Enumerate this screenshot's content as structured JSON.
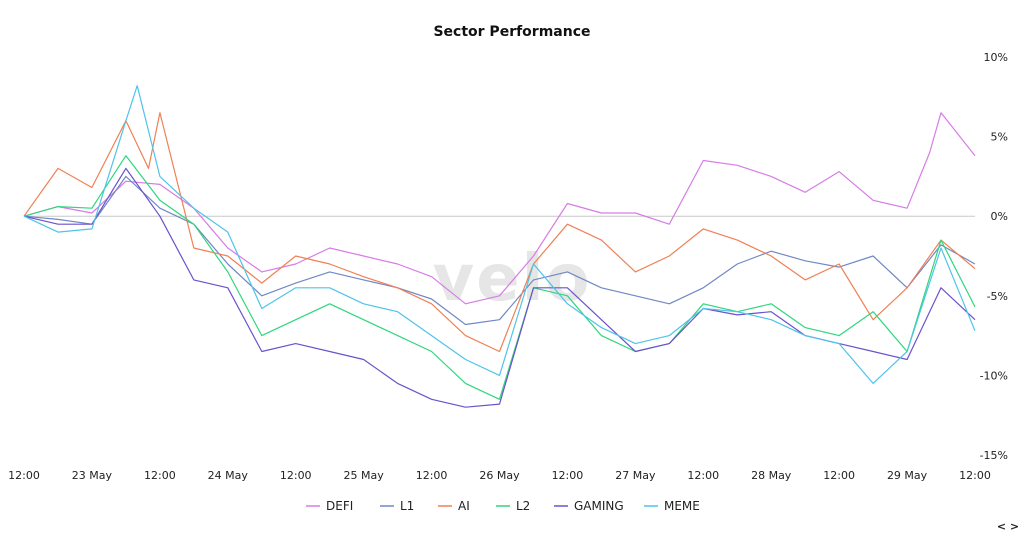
{
  "watermark": "velo",
  "zoom_control": "< >",
  "chart_data": {
    "type": "line",
    "title": "Sector Performance",
    "xlabel": "",
    "ylabel": "",
    "x_start": "2024-05-22 12:00",
    "x_end": "2024-05-29 12:00",
    "x_ticks": [
      {
        "x": "2024-05-22 12:00",
        "label": "12:00"
      },
      {
        "x": "2024-05-23 00:00",
        "label": "23 May"
      },
      {
        "x": "2024-05-23 12:00",
        "label": "12:00"
      },
      {
        "x": "2024-05-24 00:00",
        "label": "24 May"
      },
      {
        "x": "2024-05-24 12:00",
        "label": "12:00"
      },
      {
        "x": "2024-05-25 00:00",
        "label": "25 May"
      },
      {
        "x": "2024-05-25 12:00",
        "label": "12:00"
      },
      {
        "x": "2024-05-26 00:00",
        "label": "26 May"
      },
      {
        "x": "2024-05-26 12:00",
        "label": "12:00"
      },
      {
        "x": "2024-05-27 00:00",
        "label": "27 May"
      },
      {
        "x": "2024-05-27 12:00",
        "label": "12:00"
      },
      {
        "x": "2024-05-28 00:00",
        "label": "28 May"
      },
      {
        "x": "2024-05-28 12:00",
        "label": "12:00"
      },
      {
        "x": "2024-05-29 00:00",
        "label": "29 May"
      },
      {
        "x": "2024-05-29 12:00",
        "label": "12:00"
      }
    ],
    "y_ticks": [
      {
        "value": 10,
        "label": "10%"
      },
      {
        "value": 5,
        "label": "5%"
      },
      {
        "value": 0,
        "label": "0%"
      },
      {
        "value": -5,
        "label": "-5%"
      },
      {
        "value": -10,
        "label": "-10%"
      },
      {
        "value": -15,
        "label": "-15%"
      }
    ],
    "ylim": [
      -15,
      10
    ],
    "y_axis_position": "right",
    "zero_line": true,
    "grid": false,
    "legend_position": "bottom-center",
    "series": [
      {
        "name": "DEFI",
        "color": "#d77ce6",
        "points": [
          [
            "2024-05-22 12:00",
            0
          ],
          [
            "2024-05-22 18:00",
            0.6
          ],
          [
            "2024-05-23 00:00",
            0.2
          ],
          [
            "2024-05-23 06:00",
            2.2
          ],
          [
            "2024-05-23 12:00",
            2.0
          ],
          [
            "2024-05-23 18:00",
            0.5
          ],
          [
            "2024-05-24 00:00",
            -2.0
          ],
          [
            "2024-05-24 06:00",
            -3.5
          ],
          [
            "2024-05-24 12:00",
            -3.0
          ],
          [
            "2024-05-24 18:00",
            -2.0
          ],
          [
            "2024-05-25 00:00",
            -2.5
          ],
          [
            "2024-05-25 06:00",
            -3.0
          ],
          [
            "2024-05-25 12:00",
            -3.8
          ],
          [
            "2024-05-25 18:00",
            -5.5
          ],
          [
            "2024-05-26 00:00",
            -5.0
          ],
          [
            "2024-05-26 06:00",
            -2.5
          ],
          [
            "2024-05-26 12:00",
            0.8
          ],
          [
            "2024-05-26 18:00",
            0.2
          ],
          [
            "2024-05-27 00:00",
            0.2
          ],
          [
            "2024-05-27 06:00",
            -0.5
          ],
          [
            "2024-05-27 12:00",
            3.5
          ],
          [
            "2024-05-27 18:00",
            3.2
          ],
          [
            "2024-05-28 00:00",
            2.5
          ],
          [
            "2024-05-28 06:00",
            1.5
          ],
          [
            "2024-05-28 12:00",
            2.8
          ],
          [
            "2024-05-28 18:00",
            1.0
          ],
          [
            "2024-05-29 00:00",
            0.5
          ],
          [
            "2024-05-29 04:00",
            4.0
          ],
          [
            "2024-05-29 06:00",
            6.5
          ],
          [
            "2024-05-29 12:00",
            3.8
          ]
        ]
      },
      {
        "name": "L1",
        "color": "#7088c4",
        "points": [
          [
            "2024-05-22 12:00",
            0
          ],
          [
            "2024-05-22 18:00",
            -0.2
          ],
          [
            "2024-05-23 00:00",
            -0.5
          ],
          [
            "2024-05-23 06:00",
            2.5
          ],
          [
            "2024-05-23 12:00",
            0.5
          ],
          [
            "2024-05-23 18:00",
            -0.5
          ],
          [
            "2024-05-24 00:00",
            -3.0
          ],
          [
            "2024-05-24 06:00",
            -5.0
          ],
          [
            "2024-05-24 12:00",
            -4.2
          ],
          [
            "2024-05-24 18:00",
            -3.5
          ],
          [
            "2024-05-25 00:00",
            -4.0
          ],
          [
            "2024-05-25 06:00",
            -4.5
          ],
          [
            "2024-05-25 12:00",
            -5.2
          ],
          [
            "2024-05-25 18:00",
            -6.8
          ],
          [
            "2024-05-26 00:00",
            -6.5
          ],
          [
            "2024-05-26 06:00",
            -4.0
          ],
          [
            "2024-05-26 12:00",
            -3.5
          ],
          [
            "2024-05-26 18:00",
            -4.5
          ],
          [
            "2024-05-27 00:00",
            -5.0
          ],
          [
            "2024-05-27 06:00",
            -5.5
          ],
          [
            "2024-05-27 12:00",
            -4.5
          ],
          [
            "2024-05-27 18:00",
            -3.0
          ],
          [
            "2024-05-28 00:00",
            -2.2
          ],
          [
            "2024-05-28 06:00",
            -2.8
          ],
          [
            "2024-05-28 12:00",
            -3.2
          ],
          [
            "2024-05-28 18:00",
            -2.5
          ],
          [
            "2024-05-29 00:00",
            -4.5
          ],
          [
            "2024-05-29 06:00",
            -1.8
          ],
          [
            "2024-05-29 12:00",
            -3.0
          ]
        ]
      },
      {
        "name": "AI",
        "color": "#f08055",
        "points": [
          [
            "2024-05-22 12:00",
            0
          ],
          [
            "2024-05-22 18:00",
            3.0
          ],
          [
            "2024-05-23 00:00",
            1.8
          ],
          [
            "2024-05-23 06:00",
            6.0
          ],
          [
            "2024-05-23 10:00",
            3.0
          ],
          [
            "2024-05-23 12:00",
            6.5
          ],
          [
            "2024-05-23 18:00",
            -2.0
          ],
          [
            "2024-05-24 00:00",
            -2.5
          ],
          [
            "2024-05-24 06:00",
            -4.2
          ],
          [
            "2024-05-24 12:00",
            -2.5
          ],
          [
            "2024-05-24 18:00",
            -3.0
          ],
          [
            "2024-05-25 00:00",
            -3.8
          ],
          [
            "2024-05-25 06:00",
            -4.5
          ],
          [
            "2024-05-25 12:00",
            -5.5
          ],
          [
            "2024-05-25 18:00",
            -7.5
          ],
          [
            "2024-05-26 00:00",
            -8.5
          ],
          [
            "2024-05-26 06:00",
            -3.0
          ],
          [
            "2024-05-26 12:00",
            -0.5
          ],
          [
            "2024-05-26 18:00",
            -1.5
          ],
          [
            "2024-05-27 00:00",
            -3.5
          ],
          [
            "2024-05-27 06:00",
            -2.5
          ],
          [
            "2024-05-27 12:00",
            -0.8
          ],
          [
            "2024-05-27 18:00",
            -1.5
          ],
          [
            "2024-05-28 00:00",
            -2.5
          ],
          [
            "2024-05-28 06:00",
            -4.0
          ],
          [
            "2024-05-28 12:00",
            -3.0
          ],
          [
            "2024-05-28 18:00",
            -6.5
          ],
          [
            "2024-05-29 00:00",
            -4.5
          ],
          [
            "2024-05-29 06:00",
            -1.5
          ],
          [
            "2024-05-29 12:00",
            -3.3
          ]
        ]
      },
      {
        "name": "L2",
        "color": "#2fd67d",
        "points": [
          [
            "2024-05-22 12:00",
            0
          ],
          [
            "2024-05-22 18:00",
            0.6
          ],
          [
            "2024-05-23 00:00",
            0.5
          ],
          [
            "2024-05-23 06:00",
            3.8
          ],
          [
            "2024-05-23 12:00",
            1.0
          ],
          [
            "2024-05-23 18:00",
            -0.5
          ],
          [
            "2024-05-24 00:00",
            -3.5
          ],
          [
            "2024-05-24 06:00",
            -7.5
          ],
          [
            "2024-05-24 12:00",
            -6.5
          ],
          [
            "2024-05-24 18:00",
            -5.5
          ],
          [
            "2024-05-25 00:00",
            -6.5
          ],
          [
            "2024-05-25 06:00",
            -7.5
          ],
          [
            "2024-05-25 12:00",
            -8.5
          ],
          [
            "2024-05-25 18:00",
            -10.5
          ],
          [
            "2024-05-26 00:00",
            -11.5
          ],
          [
            "2024-05-26 06:00",
            -4.5
          ],
          [
            "2024-05-26 12:00",
            -5.0
          ],
          [
            "2024-05-26 18:00",
            -7.5
          ],
          [
            "2024-05-27 00:00",
            -8.5
          ],
          [
            "2024-05-27 06:00",
            -8.0
          ],
          [
            "2024-05-27 12:00",
            -5.5
          ],
          [
            "2024-05-27 18:00",
            -6.0
          ],
          [
            "2024-05-28 00:00",
            -5.5
          ],
          [
            "2024-05-28 06:00",
            -7.0
          ],
          [
            "2024-05-28 12:00",
            -7.5
          ],
          [
            "2024-05-28 18:00",
            -6.0
          ],
          [
            "2024-05-29 00:00",
            -8.5
          ],
          [
            "2024-05-29 06:00",
            -1.5
          ],
          [
            "2024-05-29 12:00",
            -5.7
          ]
        ]
      },
      {
        "name": "GAMING",
        "color": "#6b52cc",
        "points": [
          [
            "2024-05-22 12:00",
            0
          ],
          [
            "2024-05-22 18:00",
            -0.5
          ],
          [
            "2024-05-23 00:00",
            -0.5
          ],
          [
            "2024-05-23 06:00",
            3.0
          ],
          [
            "2024-05-23 12:00",
            0.0
          ],
          [
            "2024-05-23 18:00",
            -4.0
          ],
          [
            "2024-05-24 00:00",
            -4.5
          ],
          [
            "2024-05-24 06:00",
            -8.5
          ],
          [
            "2024-05-24 12:00",
            -8.0
          ],
          [
            "2024-05-24 18:00",
            -8.5
          ],
          [
            "2024-05-25 00:00",
            -9.0
          ],
          [
            "2024-05-25 06:00",
            -10.5
          ],
          [
            "2024-05-25 12:00",
            -11.5
          ],
          [
            "2024-05-25 18:00",
            -12.0
          ],
          [
            "2024-05-26 00:00",
            -11.8
          ],
          [
            "2024-05-26 06:00",
            -4.5
          ],
          [
            "2024-05-26 12:00",
            -4.5
          ],
          [
            "2024-05-26 18:00",
            -6.5
          ],
          [
            "2024-05-27 00:00",
            -8.5
          ],
          [
            "2024-05-27 06:00",
            -8.0
          ],
          [
            "2024-05-27 12:00",
            -5.8
          ],
          [
            "2024-05-27 18:00",
            -6.2
          ],
          [
            "2024-05-28 00:00",
            -6.0
          ],
          [
            "2024-05-28 06:00",
            -7.5
          ],
          [
            "2024-05-28 12:00",
            -8.0
          ],
          [
            "2024-05-28 18:00",
            -8.5
          ],
          [
            "2024-05-29 00:00",
            -9.0
          ],
          [
            "2024-05-29 06:00",
            -4.5
          ],
          [
            "2024-05-29 12:00",
            -6.5
          ]
        ]
      },
      {
        "name": "MEME",
        "color": "#4fc3ea",
        "points": [
          [
            "2024-05-22 12:00",
            0
          ],
          [
            "2024-05-22 18:00",
            -1.0
          ],
          [
            "2024-05-23 00:00",
            -0.8
          ],
          [
            "2024-05-23 06:00",
            6.0
          ],
          [
            "2024-05-23 08:00",
            8.2
          ],
          [
            "2024-05-23 12:00",
            2.5
          ],
          [
            "2024-05-23 18:00",
            0.5
          ],
          [
            "2024-05-24 00:00",
            -1.0
          ],
          [
            "2024-05-24 06:00",
            -5.8
          ],
          [
            "2024-05-24 12:00",
            -4.5
          ],
          [
            "2024-05-24 18:00",
            -4.5
          ],
          [
            "2024-05-25 00:00",
            -5.5
          ],
          [
            "2024-05-25 06:00",
            -6.0
          ],
          [
            "2024-05-25 12:00",
            -7.5
          ],
          [
            "2024-05-25 18:00",
            -9.0
          ],
          [
            "2024-05-26 00:00",
            -10.0
          ],
          [
            "2024-05-26 06:00",
            -3.0
          ],
          [
            "2024-05-26 12:00",
            -5.5
          ],
          [
            "2024-05-26 18:00",
            -7.0
          ],
          [
            "2024-05-27 00:00",
            -8.0
          ],
          [
            "2024-05-27 06:00",
            -7.5
          ],
          [
            "2024-05-27 12:00",
            -5.8
          ],
          [
            "2024-05-27 18:00",
            -6.0
          ],
          [
            "2024-05-28 00:00",
            -6.5
          ],
          [
            "2024-05-28 06:00",
            -7.5
          ],
          [
            "2024-05-28 12:00",
            -8.0
          ],
          [
            "2024-05-28 18:00",
            -10.5
          ],
          [
            "2024-05-29 00:00",
            -8.5
          ],
          [
            "2024-05-29 06:00",
            -2.0
          ],
          [
            "2024-05-29 12:00",
            -7.2
          ]
        ]
      }
    ]
  }
}
